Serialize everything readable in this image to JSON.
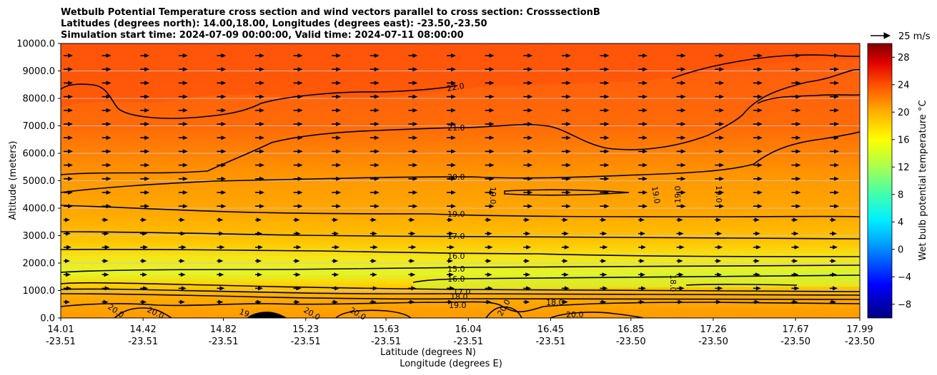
{
  "chart_data": {
    "type": "heatmap",
    "title_lines": [
      "Wetbulb Potential Temperature cross section and wind vectors parallel to cross section: CrosssectionB",
      "Latitudes (degrees north): 14.00,18.00, Longitudes (degrees east): -23.50,-23.50",
      "Simulation start time: 2024-07-09 00:00:00, Valid time: 2024-07-11 08:00:00"
    ],
    "ylabel": "Altitude (meters)",
    "xlabel_lat": "Latitude (degrees N)",
    "xlabel_lon": "Longitude (degrees E)",
    "ylim": [
      0,
      10000
    ],
    "y_ticks": [
      "0.0",
      "1000.0",
      "2000.0",
      "3000.0",
      "4000.0",
      "5000.0",
      "6000.0",
      "7000.0",
      "8000.0",
      "9000.0",
      "10000.0"
    ],
    "x_ticks_lat": [
      "14.01",
      "14.42",
      "14.82",
      "15.23",
      "15.63",
      "16.04",
      "16.45",
      "16.85",
      "17.26",
      "17.67",
      "17.99"
    ],
    "x_ticks_lon": [
      "-23.51",
      "-23.51",
      "-23.51",
      "-23.51",
      "-23.51",
      "-23.51",
      "-23.51",
      "-23.50",
      "-23.50",
      "-23.50",
      "-23.50"
    ],
    "colorbar": {
      "label": "Wet bulb potential temperature $^\\circ$C",
      "range": [
        -10,
        30
      ],
      "ticks": [
        "−8",
        "−4",
        "0",
        "4",
        "8",
        "12",
        "16",
        "20",
        "24",
        "28"
      ]
    },
    "quiver_key": "25 m/s",
    "contour_labels": [
      "22.0",
      "21.0",
      "20.0",
      "19.0",
      "19.0",
      "19.0",
      "19.0",
      "19.0",
      "18.0",
      "17.0",
      "16.0",
      "15.0",
      "16.0",
      "17.0",
      "18.0",
      "19.0",
      "20.0",
      "20.0",
      "19",
      "20.0",
      "20.0",
      "20.0",
      "18.0",
      "20.0",
      "20.0",
      "19.0"
    ]
  }
}
